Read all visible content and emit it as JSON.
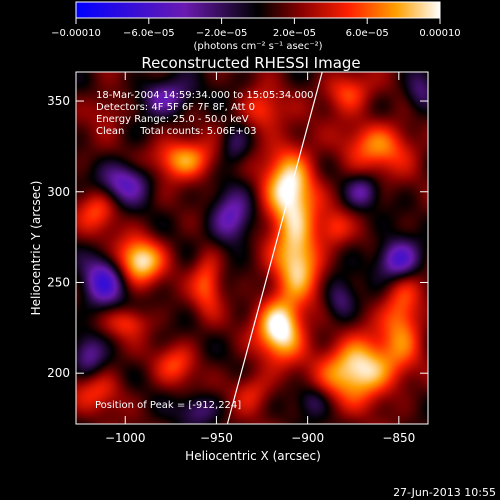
{
  "chart_data": {
    "type": "heatmap",
    "title": "Reconstructed RHESSI Image",
    "xlabel": "Heliocentric X (arcsec)",
    "ylabel": "Heliocentric Y (arcsec)",
    "xlim": [
      -1027,
      -834
    ],
    "ylim": [
      172,
      366
    ],
    "x_ticks": [
      -1000,
      -950,
      -900,
      -850
    ],
    "y_ticks": [
      200,
      250,
      300,
      350
    ],
    "x_tick_labels": [
      "−1000",
      "−950",
      "−900",
      "−850"
    ],
    "y_tick_labels": [
      "200",
      "250",
      "300",
      "350"
    ],
    "colorbar": {
      "range": [
        -0.0001,
        0.0001
      ],
      "tick_values": [
        -0.0001,
        -6e-05,
        -2e-05,
        2e-05,
        6e-05,
        0.0001
      ],
      "tick_labels": [
        "−0.00010",
        "−6.0e−05",
        "−2.0e−05",
        "2.0e−05",
        "6.0e−05",
        "0.00010"
      ],
      "units": "(photons cm⁻² s⁻¹ asec⁻²)"
    },
    "annotations": [
      "18-Mar-2004 14:59:34.000 to 15:05:34.000",
      "Detectors: 4F 5F 6F 7F 8F, Att 0",
      "Energy Range: 25.0 - 50.0 keV",
      "Clean     Total counts: 5.06E+03"
    ],
    "peak_label": "Position of Peak = [-912,224]",
    "peak": [
      -912,
      224
    ],
    "limb_line": [
      [
        -944,
        172
      ],
      [
        -892,
        366
      ]
    ],
    "blobs": [
      {
        "x": -915,
        "y": 225,
        "sx": 9,
        "sy": 12,
        "v": 1.0
      },
      {
        "x": -910,
        "y": 300,
        "sx": 10,
        "sy": 18,
        "v": 0.9
      },
      {
        "x": -905,
        "y": 262,
        "sx": 9,
        "sy": 15,
        "v": 0.75
      },
      {
        "x": -872,
        "y": 202,
        "sx": 14,
        "sy": 12,
        "v": 0.95
      },
      {
        "x": -848,
        "y": 232,
        "sx": 8,
        "sy": 18,
        "v": 0.6
      },
      {
        "x": -992,
        "y": 262,
        "sx": 9,
        "sy": 9,
        "v": 0.85
      },
      {
        "x": -968,
        "y": 318,
        "sx": 12,
        "sy": 8,
        "v": 0.7
      },
      {
        "x": -1015,
        "y": 290,
        "sx": 8,
        "sy": 9,
        "v": 0.45
      },
      {
        "x": -998,
        "y": 228,
        "sx": 8,
        "sy": 6,
        "v": 0.4
      },
      {
        "x": -972,
        "y": 205,
        "sx": 8,
        "sy": 8,
        "v": 0.4
      },
      {
        "x": -955,
        "y": 250,
        "sx": 6,
        "sy": 12,
        "v": 0.5
      },
      {
        "x": -860,
        "y": 325,
        "sx": 14,
        "sy": 10,
        "v": 0.55
      },
      {
        "x": -878,
        "y": 355,
        "sx": 9,
        "sy": 8,
        "v": 0.5
      },
      {
        "x": -925,
        "y": 345,
        "sx": 8,
        "sy": 8,
        "v": 0.45
      },
      {
        "x": -1010,
        "y": 345,
        "sx": 8,
        "sy": 8,
        "v": 0.25
      },
      {
        "x": -885,
        "y": 280,
        "sx": 6,
        "sy": 7,
        "v": 0.35
      },
      {
        "x": -1015,
        "y": 190,
        "sx": 10,
        "sy": 8,
        "v": 0.35
      },
      {
        "x": -930,
        "y": 190,
        "sx": 8,
        "sy": 8,
        "v": 0.35
      },
      {
        "x": -1000,
        "y": 305,
        "sx": 10,
        "sy": 8,
        "v": -0.6
      },
      {
        "x": -1012,
        "y": 250,
        "sx": 8,
        "sy": 10,
        "v": -0.7
      },
      {
        "x": -942,
        "y": 285,
        "sx": 8,
        "sy": 10,
        "v": -0.6
      },
      {
        "x": -978,
        "y": 352,
        "sx": 10,
        "sy": 7,
        "v": -0.55
      },
      {
        "x": -850,
        "y": 262,
        "sx": 8,
        "sy": 8,
        "v": -0.85
      },
      {
        "x": -882,
        "y": 240,
        "sx": 6,
        "sy": 8,
        "v": -0.4
      },
      {
        "x": -870,
        "y": 300,
        "sx": 6,
        "sy": 6,
        "v": -0.4
      },
      {
        "x": -940,
        "y": 325,
        "sx": 6,
        "sy": 8,
        "v": -0.35
      },
      {
        "x": -960,
        "y": 180,
        "sx": 8,
        "sy": 6,
        "v": -0.35
      },
      {
        "x": -1020,
        "y": 210,
        "sx": 6,
        "sy": 8,
        "v": -0.4
      },
      {
        "x": -838,
        "y": 355,
        "sx": 6,
        "sy": 8,
        "v": -0.4
      },
      {
        "x": -897,
        "y": 185,
        "sx": 6,
        "sy": 6,
        "v": -0.3
      }
    ]
  },
  "footer": {
    "date": "27-Jun-2013 10:55"
  }
}
